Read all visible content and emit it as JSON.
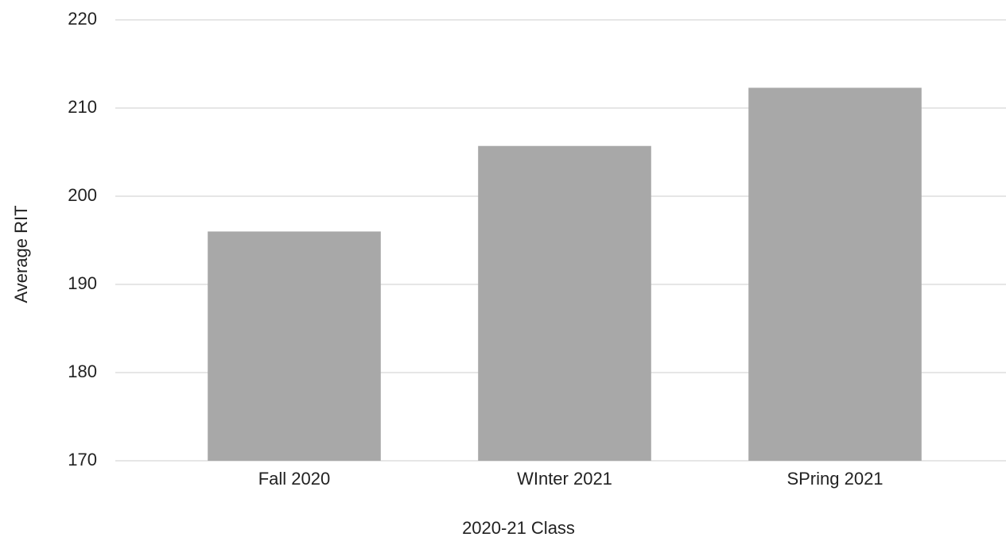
{
  "chart_data": {
    "type": "bar",
    "x_label": "2020-21 Class",
    "y_label": "Average RIT",
    "categories": [
      "Fall 2020",
      "WInter 2021",
      "SPring 2021"
    ],
    "values": [
      196,
      205.7,
      212.3
    ],
    "color": "#a8a8a8",
    "ylim": [
      170,
      220
    ],
    "yticks": [
      170,
      180,
      190,
      200,
      210,
      220
    ],
    "grid": true
  }
}
